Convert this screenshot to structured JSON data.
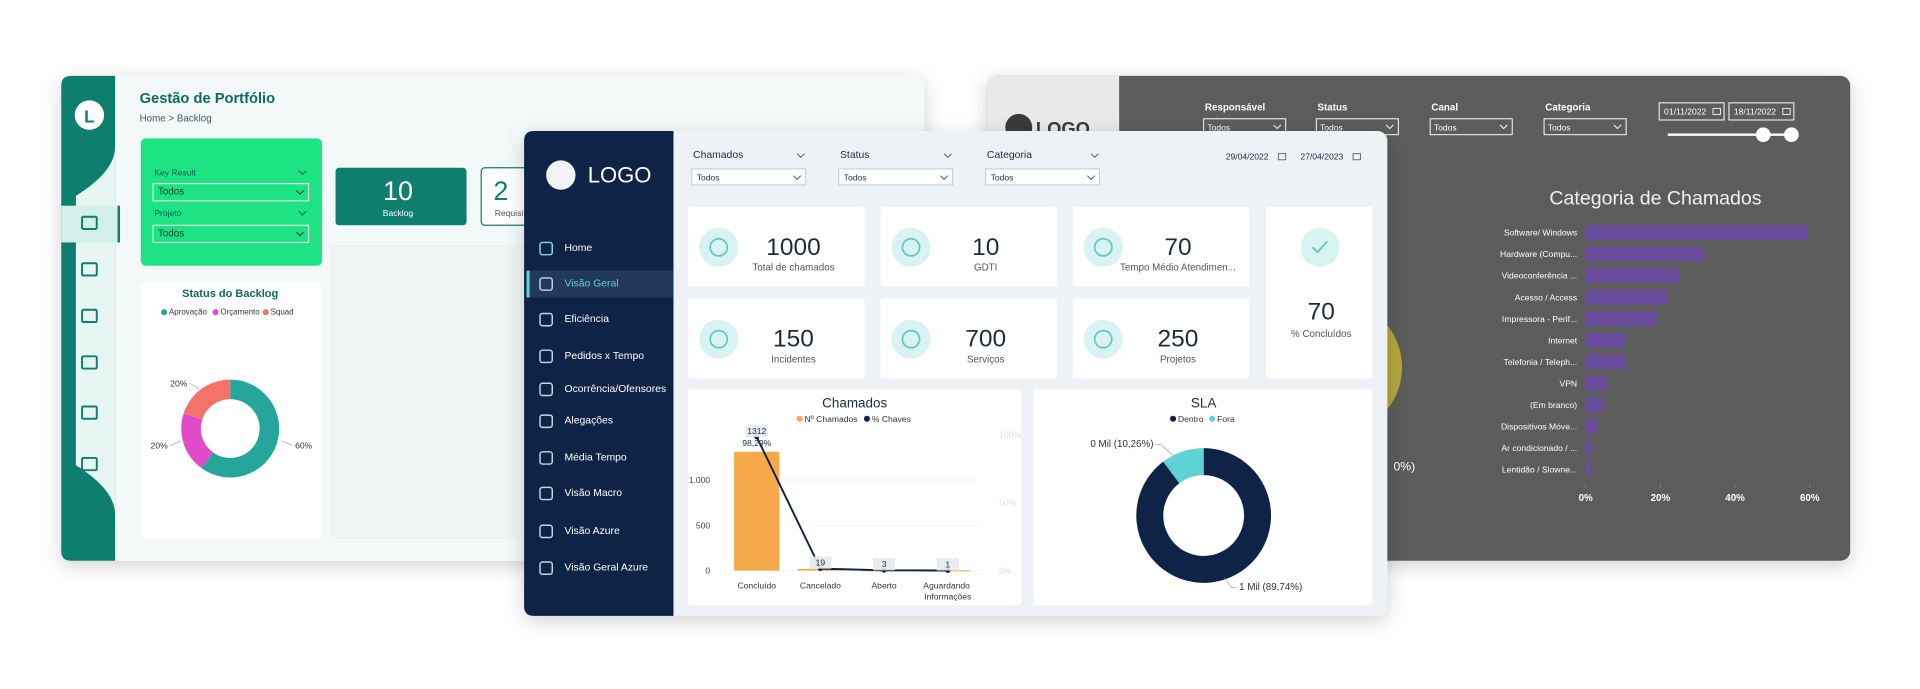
{
  "left_dashboard": {
    "logo": "L",
    "title": "Gestão de Portfólio",
    "breadcrumb": "Home > Backlog",
    "filters": [
      {
        "label": "Key Result",
        "value": "Todos"
      },
      {
        "label": "Projeto",
        "value": "Todos"
      }
    ],
    "kpis": [
      {
        "value": 10,
        "label": "Backlog"
      },
      {
        "value": 2,
        "label": "Requisi"
      }
    ]
  },
  "main_dashboard": {
    "logo": "LOGO",
    "nav": [
      "Home",
      "Visão Geral",
      "Eficiência",
      "Pedidos x Tempo",
      "Ocorrência/Ofensores",
      "Alegações",
      "Média Tempo",
      "Visão Macro",
      "Visão Azure",
      "Visão Geral Azure"
    ],
    "active_nav": 1,
    "filters": [
      {
        "label": "Chamados",
        "value": "Todos"
      },
      {
        "label": "Status",
        "value": "Todos"
      },
      {
        "label": "Categoria",
        "value": "Todos"
      }
    ],
    "date_range": [
      "29/04/2022",
      "27/04/2023"
    ],
    "kpis": [
      {
        "value": 1000,
        "label": "Total de chamados"
      },
      {
        "value": 10,
        "label": "GDTI"
      },
      {
        "value": 70,
        "label": "Tempo Médio Atendimen..."
      },
      {
        "value": 150,
        "label": "Incidentes"
      },
      {
        "value": 700,
        "label": "Serviços"
      },
      {
        "value": 250,
        "label": "Projetos"
      },
      {
        "value": 70,
        "label": "% Concluídos"
      }
    ]
  },
  "right_dashboard": {
    "logo": "LOGO",
    "filters": [
      {
        "label": "Responsável",
        "value": "Todos"
      },
      {
        "label": "Status",
        "value": "Todos"
      },
      {
        "label": "Canal",
        "value": "Todos"
      },
      {
        "label": "Categoria",
        "value": "Todos"
      }
    ],
    "date_range": [
      "01/11/2022",
      "18/11/2022"
    ],
    "partial_label": "0%)"
  },
  "chart_data": [
    {
      "type": "donut",
      "title": "Status do Backlog",
      "categories": [
        "Aprovação",
        "Orçamento",
        "Squad"
      ],
      "values": [
        60,
        20,
        20
      ],
      "value_labels": [
        "60%",
        "20%",
        "20%"
      ],
      "colors": [
        "#26a69a",
        "#e24bc7",
        "#f4726a"
      ]
    },
    {
      "type": "combo",
      "title": "Chamados",
      "categories": [
        "Concluído",
        "Cancelado",
        "Aberto",
        "Aguardando Informações"
      ],
      "series": [
        {
          "name": "Nº Chamados",
          "type": "bar",
          "color": "#f5a94a",
          "values": [
            1312,
            19,
            3,
            1
          ]
        },
        {
          "name": "% Chaves",
          "type": "line",
          "axis": "y2",
          "color": "#0f2346",
          "values": [
            98.29,
            1.42,
            0.22,
            0.07
          ],
          "value_labels": [
            "98,29%",
            null,
            null,
            null
          ]
        }
      ],
      "ylim": [
        0,
        1500
      ],
      "yticks": [
        0,
        500,
        {
          "value": 1000,
          "label": "1.000"
        }
      ],
      "y2lim": [
        0,
        100
      ],
      "y2ticks": [
        {
          "value": 0,
          "label": "0%"
        },
        {
          "value": 50,
          "label": "50%"
        },
        {
          "value": 100,
          "label": "100%"
        }
      ]
    },
    {
      "type": "donut",
      "title": "SLA",
      "categories": [
        "Dentro",
        "Fora"
      ],
      "values": [
        89.74,
        10.26
      ],
      "value_labels": [
        "1 Mil (89,74%)",
        "0 Mil (10,26%)"
      ],
      "colors": [
        "#0f2346",
        "#5fd3d3"
      ]
    },
    {
      "type": "bar",
      "orientation": "horizontal",
      "title": "Categoria de Chamados",
      "categories": [
        "Software/ Windows",
        "Hardware (Compu...",
        "Videoconferência ...",
        "Acesso / Access",
        "Impressora - Perif...",
        "Internet",
        "Telefonia / Teleph...",
        "VPN",
        "(Em branco)",
        "Dispositivos Móve...",
        "Ar condicionado / ...",
        "Lentidão / Slowne..."
      ],
      "values": [
        59.5,
        31.8,
        25.2,
        22,
        19,
        10.8,
        10.8,
        5.9,
        4.6,
        3,
        1.6,
        1.3
      ],
      "color": "#6a4c9c",
      "xlim": [
        0,
        60
      ],
      "xticks": [
        {
          "value": 0,
          "label": "0%"
        },
        {
          "value": 20,
          "label": "20%"
        },
        {
          "value": 40,
          "label": "40%"
        },
        {
          "value": 60,
          "label": "60%"
        }
      ]
    }
  ]
}
